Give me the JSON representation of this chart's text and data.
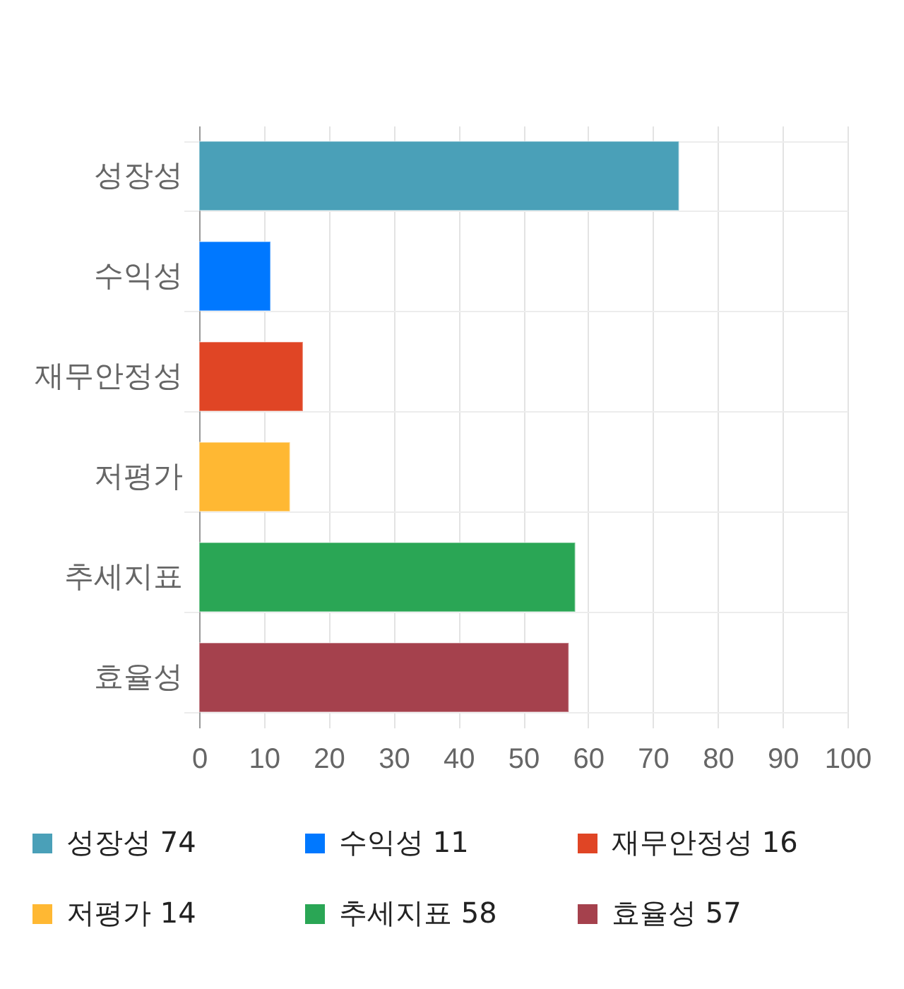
{
  "chart_data": {
    "type": "bar",
    "orientation": "horizontal",
    "stacked": true,
    "categories": [
      "성장성",
      "수익성",
      "재무안정성",
      "저평가",
      "추세지표",
      "효율성"
    ],
    "series": [
      {
        "name": "성장성 74",
        "color": "#4aa0b8",
        "values": [
          74,
          null,
          null,
          null,
          null,
          null
        ]
      },
      {
        "name": "수익성 11",
        "color": "#0078ff",
        "values": [
          null,
          11,
          null,
          null,
          null,
          null
        ]
      },
      {
        "name": "재무안정성 16",
        "color": "#e04525",
        "values": [
          null,
          null,
          16,
          null,
          null,
          null
        ]
      },
      {
        "name": "저평가 14",
        "color": "#ffb833",
        "values": [
          null,
          null,
          null,
          14,
          null,
          null
        ]
      },
      {
        "name": "추세지표 58",
        "color": "#2aa655",
        "values": [
          null,
          null,
          null,
          null,
          58,
          null
        ]
      },
      {
        "name": "효율성 57",
        "color": "#a5414d",
        "values": [
          null,
          null,
          null,
          null,
          null,
          57
        ]
      }
    ],
    "xlim": [
      0,
      100
    ],
    "xticks": [
      0,
      10,
      20,
      30,
      40,
      50,
      60,
      70,
      80,
      90,
      100
    ],
    "grid": true,
    "legend": "bottom"
  }
}
